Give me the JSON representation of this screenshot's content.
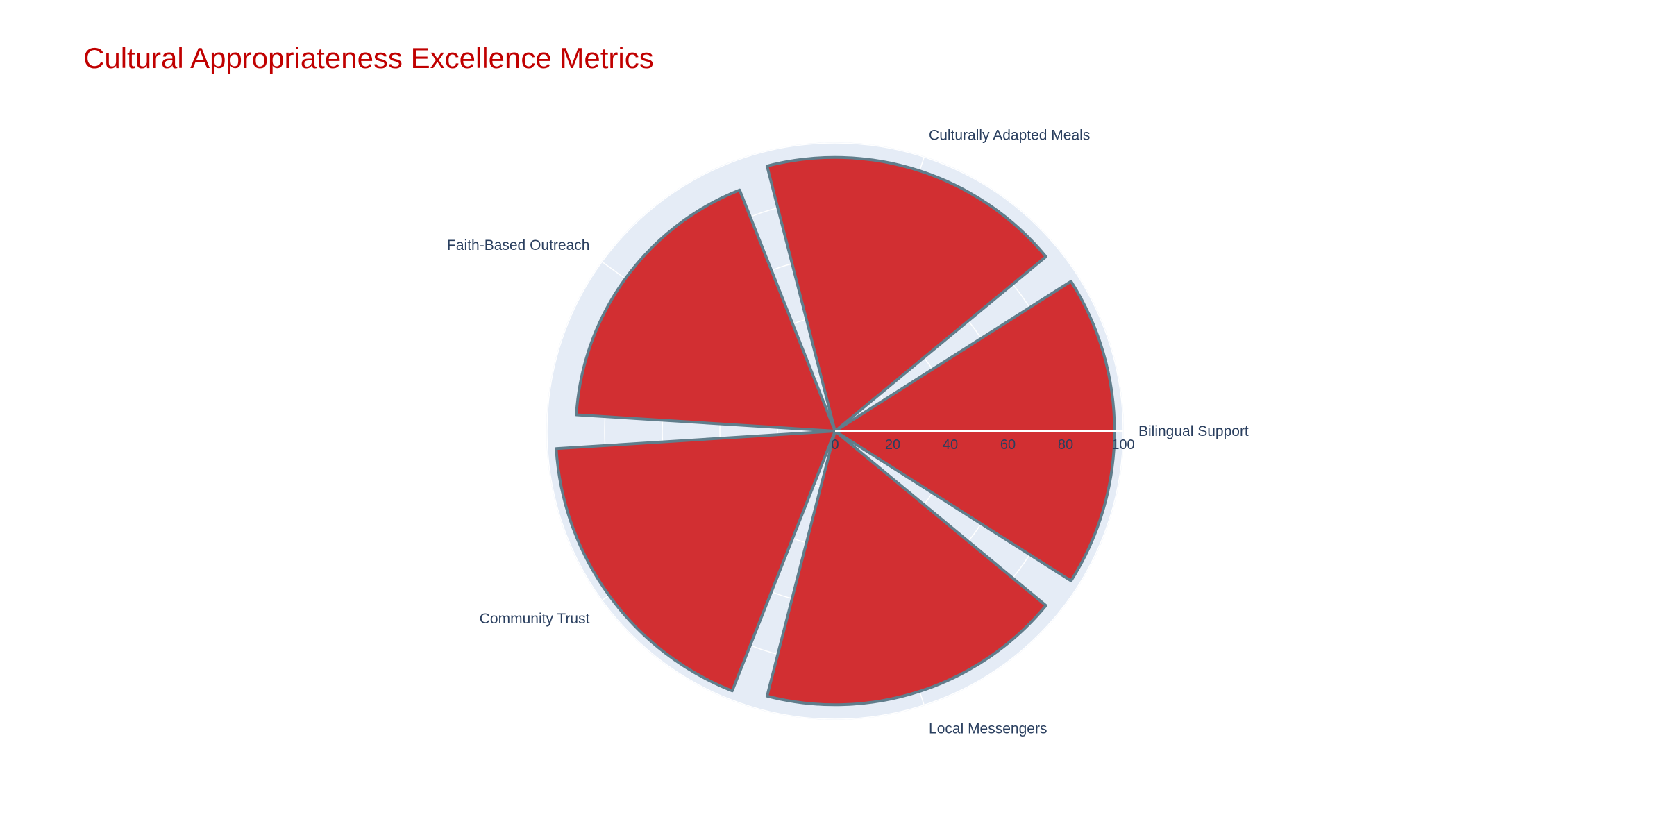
{
  "chart_data": {
    "type": "barpolar",
    "title": "Cultural Appropriateness Excellence Metrics",
    "categories": [
      "Bilingual Support",
      "Culturally Adapted Meals",
      "Faith-Based Outreach",
      "Community Trust",
      "Local Messengers"
    ],
    "values": [
      97,
      95,
      90,
      97,
      95
    ],
    "radial_range": [
      0,
      100
    ],
    "radial_ticks": [
      0,
      20,
      40,
      60,
      80,
      100
    ],
    "angular_direction": "counterclockwise",
    "angular_start": "right",
    "grid": true,
    "legend": "none",
    "colors": {
      "title": "#c00000",
      "bar_fill": "#d22f32",
      "bar_outline": "#607d8b",
      "polar_background": "#e5ecf6",
      "grid": "#ffffff",
      "text": "#2a3f5f"
    }
  }
}
